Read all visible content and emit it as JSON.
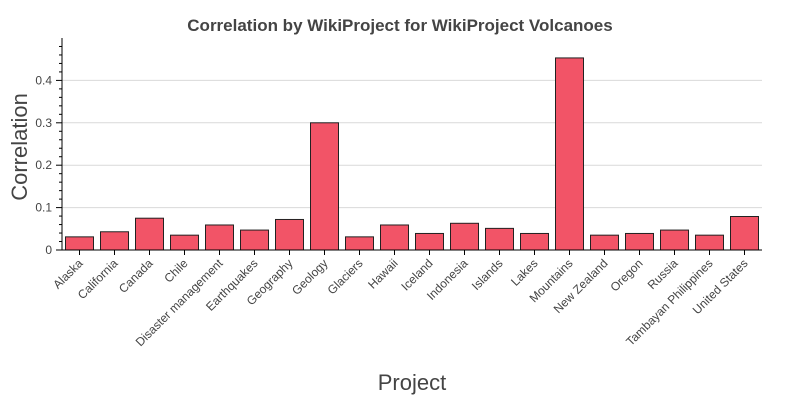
{
  "chart_data": {
    "type": "bar",
    "title": "Correlation by WikiProject for WikiProject Volcanoes",
    "xlabel": "Project",
    "ylabel": "Correlation",
    "categories": [
      "Alaska",
      "California",
      "Canada",
      "Chile",
      "Disaster management",
      "Earthquakes",
      "Geography",
      "Geology",
      "Glaciers",
      "Hawaii",
      "Iceland",
      "Indonesia",
      "Islands",
      "Lakes",
      "Mountains",
      "New Zealand",
      "Oregon",
      "Russia",
      "Tambayan Philippines",
      "United States"
    ],
    "values": [
      0.031,
      0.043,
      0.075,
      0.035,
      0.059,
      0.047,
      0.072,
      0.3,
      0.031,
      0.059,
      0.039,
      0.063,
      0.051,
      0.039,
      0.453,
      0.035,
      0.039,
      0.047,
      0.035,
      0.079
    ],
    "ylim": [
      0,
      0.5
    ],
    "yticks": [
      0,
      0.1,
      0.2,
      0.3,
      0.4
    ],
    "ytick_labels": [
      "0",
      "0.1",
      "0.2",
      "0.3",
      "0.4"
    ],
    "grid": "horizontal",
    "bar_color": "#f25467"
  }
}
